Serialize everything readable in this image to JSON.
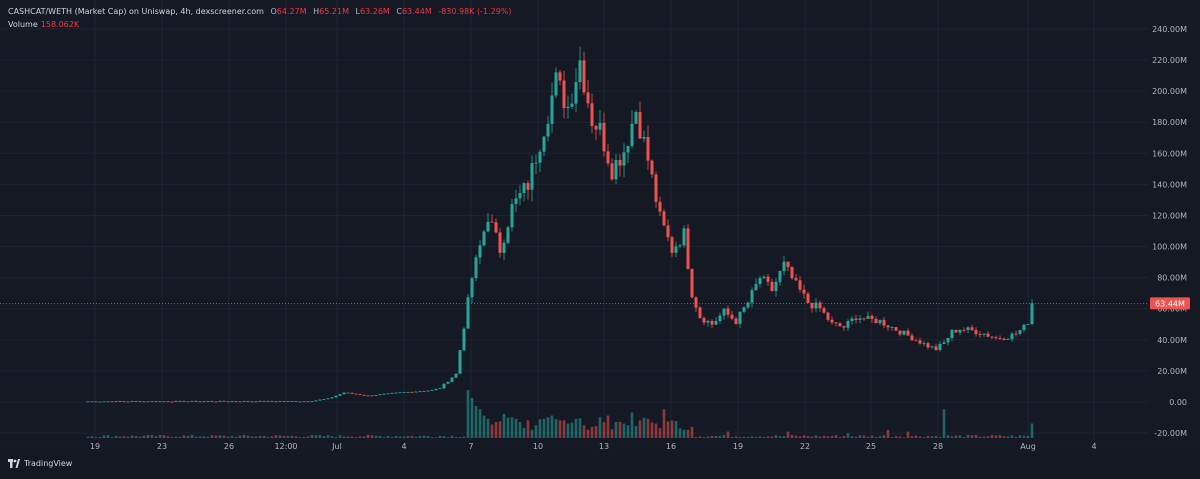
{
  "header": {
    "symbol": "CASHCAT/WETH (Market Cap) on Uniswap, 4h, dexscreener.com",
    "o_label": "O",
    "o_value": "64.27M",
    "h_label": "H",
    "h_value": "65.21M",
    "l_label": "L",
    "l_value": "63.26M",
    "c_label": "C",
    "c_value": "63.44M",
    "change": "-830.98K (-1.29%)",
    "volume_label": "Volume",
    "volume_value": "158.062K"
  },
  "footer": {
    "brand": "TradingView"
  },
  "colors": {
    "up": "#26a69a",
    "down": "#ef5350",
    "background": "#151924",
    "grid": "#1f2330",
    "price_line": "#ef5350",
    "text": "#b2b5be"
  },
  "chart_data": {
    "type": "candlestick",
    "interval": "4h",
    "price_label": "63.44M",
    "y_ticks": [
      "240.00M",
      "220.00M",
      "200.00M",
      "180.00M",
      "160.00M",
      "140.00M",
      "120.00M",
      "100.00M",
      "80.00M",
      "60.00M",
      "40.00M",
      "20.00M",
      "0.00",
      "-20.00M"
    ],
    "x_ticks": [
      "19",
      "23",
      "26",
      "12:00",
      "Jul",
      "4",
      "7",
      "10",
      "13",
      "16",
      "19",
      "22",
      "25",
      "28",
      "Aug",
      "4"
    ],
    "ylim": [
      -20,
      240
    ],
    "grid": true,
    "control_points": [
      [
        0,
        0.3
      ],
      [
        55,
        0.4
      ],
      [
        60,
        2
      ],
      [
        64,
        6
      ],
      [
        70,
        4
      ],
      [
        78,
        6
      ],
      [
        86,
        7.5
      ],
      [
        88,
        9
      ],
      [
        92,
        18
      ],
      [
        96,
        80
      ],
      [
        100,
        120
      ],
      [
        103,
        98
      ],
      [
        106,
        125
      ],
      [
        110,
        140
      ],
      [
        113,
        168
      ],
      [
        117,
        206
      ],
      [
        120,
        190
      ],
      [
        123,
        220
      ],
      [
        126,
        182
      ],
      [
        128,
        175
      ],
      [
        131,
        150
      ],
      [
        134,
        162
      ],
      [
        137,
        188
      ],
      [
        140,
        156
      ],
      [
        143,
        118
      ],
      [
        146,
        98
      ],
      [
        149,
        108
      ],
      [
        151,
        70
      ],
      [
        153,
        55
      ],
      [
        156,
        50
      ],
      [
        159,
        58
      ],
      [
        162,
        52
      ],
      [
        165,
        64
      ],
      [
        168,
        80
      ],
      [
        171,
        72
      ],
      [
        174,
        88
      ],
      [
        177,
        75
      ],
      [
        180,
        64
      ],
      [
        183,
        60
      ],
      [
        186,
        50
      ],
      [
        189,
        48
      ],
      [
        192,
        55
      ],
      [
        195,
        53
      ],
      [
        198,
        52
      ],
      [
        201,
        48
      ],
      [
        204,
        44
      ],
      [
        207,
        40
      ],
      [
        210,
        36
      ],
      [
        212,
        34
      ],
      [
        214,
        38
      ],
      [
        216,
        45
      ],
      [
        218,
        47
      ],
      [
        221,
        46
      ],
      [
        224,
        44
      ],
      [
        227,
        41
      ],
      [
        230,
        42
      ],
      [
        232,
        44
      ],
      [
        234,
        48
      ],
      [
        235,
        52
      ],
      [
        236,
        63.44
      ]
    ],
    "volume_bars": [
      [
        95,
        3
      ],
      [
        96,
        2.5
      ],
      [
        97,
        2
      ],
      [
        98,
        1.8
      ],
      [
        99,
        1.4
      ],
      [
        100,
        1.2
      ],
      [
        102,
        1
      ],
      [
        104,
        1.5
      ],
      [
        106,
        1.3
      ],
      [
        108,
        1
      ],
      [
        110,
        1.1
      ],
      [
        112,
        0.8
      ],
      [
        114,
        1.2
      ],
      [
        116,
        1.4
      ],
      [
        118,
        1.1
      ],
      [
        120,
        0.9
      ],
      [
        122,
        1.2
      ],
      [
        124,
        0.8
      ],
      [
        126,
        0.7
      ],
      [
        128,
        1.3
      ],
      [
        130,
        1.4
      ],
      [
        132,
        1
      ],
      [
        134,
        0.9
      ],
      [
        136,
        1.6
      ],
      [
        138,
        1.1
      ],
      [
        140,
        1.2
      ],
      [
        142,
        0.9
      ],
      [
        144,
        1.8
      ],
      [
        146,
        1.1
      ],
      [
        148,
        0.6
      ],
      [
        150,
        0.5
      ],
      [
        160,
        0.4
      ],
      [
        175,
        0.4
      ],
      [
        190,
        0.3
      ],
      [
        200,
        0.5
      ],
      [
        205,
        0.4
      ],
      [
        214,
        1.8
      ],
      [
        236,
        0.9
      ]
    ],
    "candle_count": 240
  }
}
